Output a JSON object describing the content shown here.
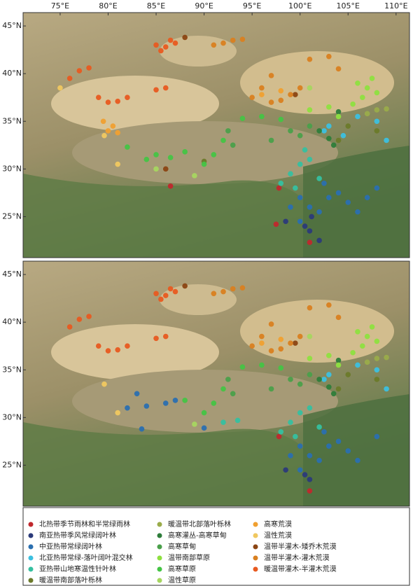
{
  "map": {
    "lon_lim": [
      71.14,
      111.4
    ],
    "lat_lim": [
      20.7,
      46.4
    ],
    "lon_ticks": [
      {
        "value": 75,
        "label": "75°E"
      },
      {
        "value": 80,
        "label": "80°E"
      },
      {
        "value": 85,
        "label": "85°E"
      },
      {
        "value": 90,
        "label": "90°E"
      },
      {
        "value": 95,
        "label": "95°E"
      },
      {
        "value": 100,
        "label": "100°E"
      },
      {
        "value": 105,
        "label": "105°E"
      },
      {
        "value": 110,
        "label": "110°E"
      }
    ],
    "lat_ticks": [
      {
        "value": 25,
        "label": "25°N"
      },
      {
        "value": 30,
        "label": "30°N"
      },
      {
        "value": 35,
        "label": "35°N"
      },
      {
        "value": 40,
        "label": "40°N"
      },
      {
        "value": 45,
        "label": "45°N"
      }
    ],
    "classes": [
      {
        "name": "北热带季节雨林和半常绿雨林",
        "color": "#c0282d"
      },
      {
        "name": "南亚热带季风常绿阔叶林",
        "color": "#2b3a7a"
      },
      {
        "name": "中亚热带常绿阔叶林",
        "color": "#2a6fb0"
      },
      {
        "name": "北亚热带常绿-落叶阔叶混交林",
        "color": "#3cc0e0"
      },
      {
        "name": "亚热带山地寒温性针叶林",
        "color": "#35c0a0"
      },
      {
        "name": "暖温带南部落叶栎林",
        "color": "#6b7a2a"
      },
      {
        "name": "暖温带北部落叶栎林",
        "color": "#9aac4a"
      },
      {
        "name": "高寒灌丛-高寒草甸",
        "color": "#2e7d3a"
      },
      {
        "name": "高寒草甸",
        "color": "#4aa04a"
      },
      {
        "name": "温带南部草原",
        "color": "#8ee040"
      },
      {
        "name": "高寒草原",
        "color": "#44c444"
      },
      {
        "name": "温性草原",
        "color": "#a6d660"
      },
      {
        "name": "高寒荒漠",
        "color": "#f0a030"
      },
      {
        "name": "温性荒漠",
        "color": "#f0c860"
      },
      {
        "name": "温带半灌木-矮乔木荒漠",
        "color": "#8b4513"
      },
      {
        "name": "温带半灌木-灌木荒漠",
        "color": "#d98020"
      },
      {
        "name": "暖温带灌木-半灌木荒漠",
        "color": "#e85a20"
      }
    ],
    "panels": [
      {
        "series": [
          {
            "lon": [
              97.5,
              101,
              86.5,
              97.8
            ],
            "lat": [
              24.2,
              22.3,
              28.2,
              28
            ]
          },
          {
            "lon": [
              101,
              100.5,
              98.5,
              102,
              101.2
            ],
            "lat": [
              23.5,
              24,
              24.5,
              22.5,
              25
            ]
          },
          {
            "lon": [
              100,
              101,
              102,
              103,
              104,
              105,
              106,
              108,
              100,
              99,
              102.5,
              107
            ],
            "lat": [
              27,
              26,
              25.5,
              27,
              27.5,
              26.5,
              25.5,
              28,
              24.5,
              26,
              28.5,
              27
            ]
          },
          {
            "lon": [
              103,
              102.5,
              108,
              109,
              106,
              104.5
            ],
            "lat": [
              34.5,
              34,
              35,
              33,
              35.5,
              33.5
            ]
          },
          {
            "lon": [
              99,
              100,
              101,
              98,
              99.5,
              102,
              100.5
            ],
            "lat": [
              29.5,
              30.5,
              31,
              28.5,
              28,
              29,
              32
            ]
          },
          {
            "lon": [
              105,
              108,
              90,
              104
            ],
            "lat": [
              34.5,
              34,
              30.8,
              33
            ]
          },
          {
            "lon": [
              108,
              107,
              109
            ],
            "lat": [
              36.2,
              35.8,
              36.3
            ]
          },
          {
            "lon": [
              102,
              103,
              104,
              103.5
            ],
            "lat": [
              34,
              33.2,
              36,
              32.5
            ]
          },
          {
            "lon": [
              99,
              100,
              101,
              97,
              92.5,
              93
            ],
            "lat": [
              34,
              33.5,
              34.5,
              33,
              34,
              32.5
            ]
          },
          {
            "lon": [
              106,
              107,
              106.5,
              108,
              103,
              101,
              104,
              107.5,
              105.5
            ],
            "lat": [
              39,
              38.5,
              37.5,
              38,
              36.5,
              36.2,
              35.5,
              39.5,
              36.8
            ]
          },
          {
            "lon": [
              82,
              85,
              88,
              90,
              91,
              92,
              94,
              96,
              98,
              84,
              86.5
            ],
            "lat": [
              32.3,
              31.5,
              31.8,
              30.5,
              31.5,
              33,
              35.3,
              35.5,
              35.2,
              31,
              31.2
            ]
          },
          {
            "lon": [
              89,
              85,
              101
            ],
            "lat": [
              29.3,
              30,
              38.5
            ]
          },
          {
            "lon": [
              80,
              80.5,
              81,
              79.5,
              96,
              98
            ],
            "lat": [
              34,
              34.5,
              33.8,
              35,
              37.8,
              38.2
            ]
          },
          {
            "lon": [
              75,
              81,
              79.6
            ],
            "lat": [
              38.5,
              30.5,
              33.5
            ]
          },
          {
            "lon": [
              88,
              86,
              99.5
            ],
            "lat": [
              43.8,
              30,
              37.8
            ]
          },
          {
            "lon": [
              93,
              94,
              91,
              92,
              95,
              97,
              98,
              99,
              96,
              100,
              101,
              103,
              104,
              97
            ],
            "lat": [
              43.5,
              43.6,
              43,
              43.2,
              37.5,
              37,
              37.2,
              37.8,
              38.5,
              38.5,
              41.5,
              41.8,
              40.5,
              39.8
            ]
          },
          {
            "lon": [
              85,
              86,
              87,
              85.5,
              86.5,
              76,
              77,
              78,
              79,
              80,
              81,
              82,
              85,
              86
            ],
            "lat": [
              43,
              42.8,
              43.2,
              42.4,
              43.5,
              39.5,
              40.3,
              40.6,
              37.5,
              37,
              37.1,
              37.5,
              38.3,
              38.5
            ]
          }
        ]
      },
      {
        "series": [
          {
            "lon": [
              101,
              97.8
            ],
            "lat": [
              22.3,
              28
            ]
          },
          {
            "lon": [
              101,
              100.5,
              98.5
            ],
            "lat": [
              23.5,
              24,
              24.5
            ]
          },
          {
            "lon": [
              100,
              101,
              102,
              103,
              104,
              105,
              106,
              108,
              100,
              99,
              83,
              84,
              86,
              87,
              82,
              83.5,
              90,
              102.5
            ],
            "lat": [
              27,
              26,
              25.5,
              27,
              27.5,
              26.5,
              25.5,
              28,
              24.5,
              26,
              32.5,
              31.2,
              31.5,
              31.8,
              31,
              28.8,
              28.9,
              28.5
            ]
          },
          {
            "lon": [
              103,
              102.5,
              108,
              109,
              106
            ],
            "lat": [
              34.5,
              34,
              35,
              33,
              35.5
            ]
          },
          {
            "lon": [
              99,
              100,
              101,
              98,
              99.5,
              102,
              92,
              93.5
            ],
            "lat": [
              29.5,
              30.5,
              31,
              28.5,
              28,
              29,
              29.5,
              29.7
            ]
          },
          {
            "lon": [
              105,
              108,
              104
            ],
            "lat": [
              34.5,
              34,
              33
            ]
          },
          {
            "lon": [
              108,
              107,
              109
            ],
            "lat": [
              36.2,
              35.8,
              36.3
            ]
          },
          {
            "lon": [
              102,
              103,
              104,
              103.5
            ],
            "lat": [
              34,
              33.2,
              36,
              32.5
            ]
          },
          {
            "lon": [
              99,
              100,
              101,
              97,
              92.5,
              93
            ],
            "lat": [
              34,
              33.5,
              34.5,
              33,
              34,
              32.5
            ]
          },
          {
            "lon": [
              106,
              107,
              106.5,
              108,
              103,
              101,
              104,
              107.5,
              105.5
            ],
            "lat": [
              39,
              38.5,
              37.5,
              38,
              36.5,
              36.2,
              35.5,
              39.5,
              36.8
            ]
          },
          {
            "lon": [
              88,
              90,
              91,
              92,
              94,
              96,
              98
            ],
            "lat": [
              31.8,
              30.5,
              31.5,
              33,
              35.3,
              35.5,
              35.2
            ]
          },
          {
            "lon": [
              89,
              101
            ],
            "lat": [
              29.3,
              38.5
            ]
          },
          {
            "lon": [
              96,
              98
            ],
            "lat": [
              37.8,
              38.2
            ]
          },
          {
            "lon": [
              81,
              79.6
            ],
            "lat": [
              30.5,
              33.5
            ]
          },
          {
            "lon": [
              88,
              99.5
            ],
            "lat": [
              43.8,
              37.8
            ]
          },
          {
            "lon": [
              93,
              94,
              91,
              92,
              95,
              97,
              98,
              99,
              96,
              100,
              101,
              103,
              104,
              97
            ],
            "lat": [
              43.5,
              43.6,
              43,
              43.2,
              37.5,
              37,
              37.2,
              37.8,
              38.5,
              38.5,
              41.5,
              41.8,
              40.5,
              39.8
            ]
          },
          {
            "lon": [
              85,
              86,
              87,
              85.5,
              86.5,
              76,
              77,
              78,
              79,
              80,
              81,
              82,
              85,
              86
            ],
            "lat": [
              43,
              42.8,
              43.2,
              42.4,
              43.5,
              39.5,
              40.3,
              40.6,
              37.5,
              37,
              37.1,
              37.5,
              38.3,
              38.5
            ]
          }
        ]
      }
    ]
  }
}
